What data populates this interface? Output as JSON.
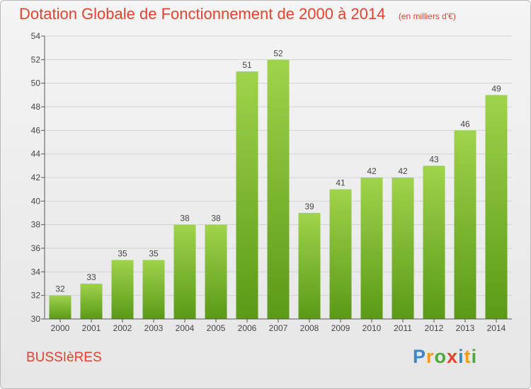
{
  "header": {
    "title": "Dotation Globale de Fonctionnement de 2000 à 2014",
    "unit": "(en milliers d'€)"
  },
  "commune": "BUSSIèRES",
  "brand": {
    "name": "Proxiti",
    "letters": [
      "P",
      "r",
      "o",
      "x",
      "i",
      "t",
      "i"
    ],
    "letter_colors": [
      "#3a86c8",
      "#f39a1b",
      "#4ea83a",
      "#e8412e",
      "#3a86c8",
      "#f39a1b",
      "#4ea83a"
    ]
  },
  "colors": {
    "title": "#e8412e",
    "bar_light": "#9fd34b",
    "bar_dark": "#5a9a16",
    "axis": "#555555",
    "grid": "#d2d2d2"
  },
  "chart_data": {
    "type": "bar",
    "categories": [
      "2000",
      "2001",
      "2002",
      "2003",
      "2004",
      "2005",
      "2006",
      "2007",
      "2008",
      "2009",
      "2010",
      "2011",
      "2012",
      "2013",
      "2014"
    ],
    "values": [
      32,
      33,
      35,
      35,
      38,
      38,
      51,
      52,
      39,
      41,
      42,
      42,
      43,
      46,
      49
    ],
    "data_labels": [
      "32",
      "33",
      "35",
      "35",
      "38",
      "38",
      "51",
      "52",
      "39",
      "41",
      "42",
      "42",
      "43",
      "46",
      "49"
    ],
    "yticks": [
      "30",
      "32",
      "34",
      "36",
      "38",
      "40",
      "42",
      "44",
      "46",
      "48",
      "50",
      "52",
      "54"
    ],
    "ylim": [
      30,
      54
    ],
    "grid": true,
    "legend": "none"
  }
}
